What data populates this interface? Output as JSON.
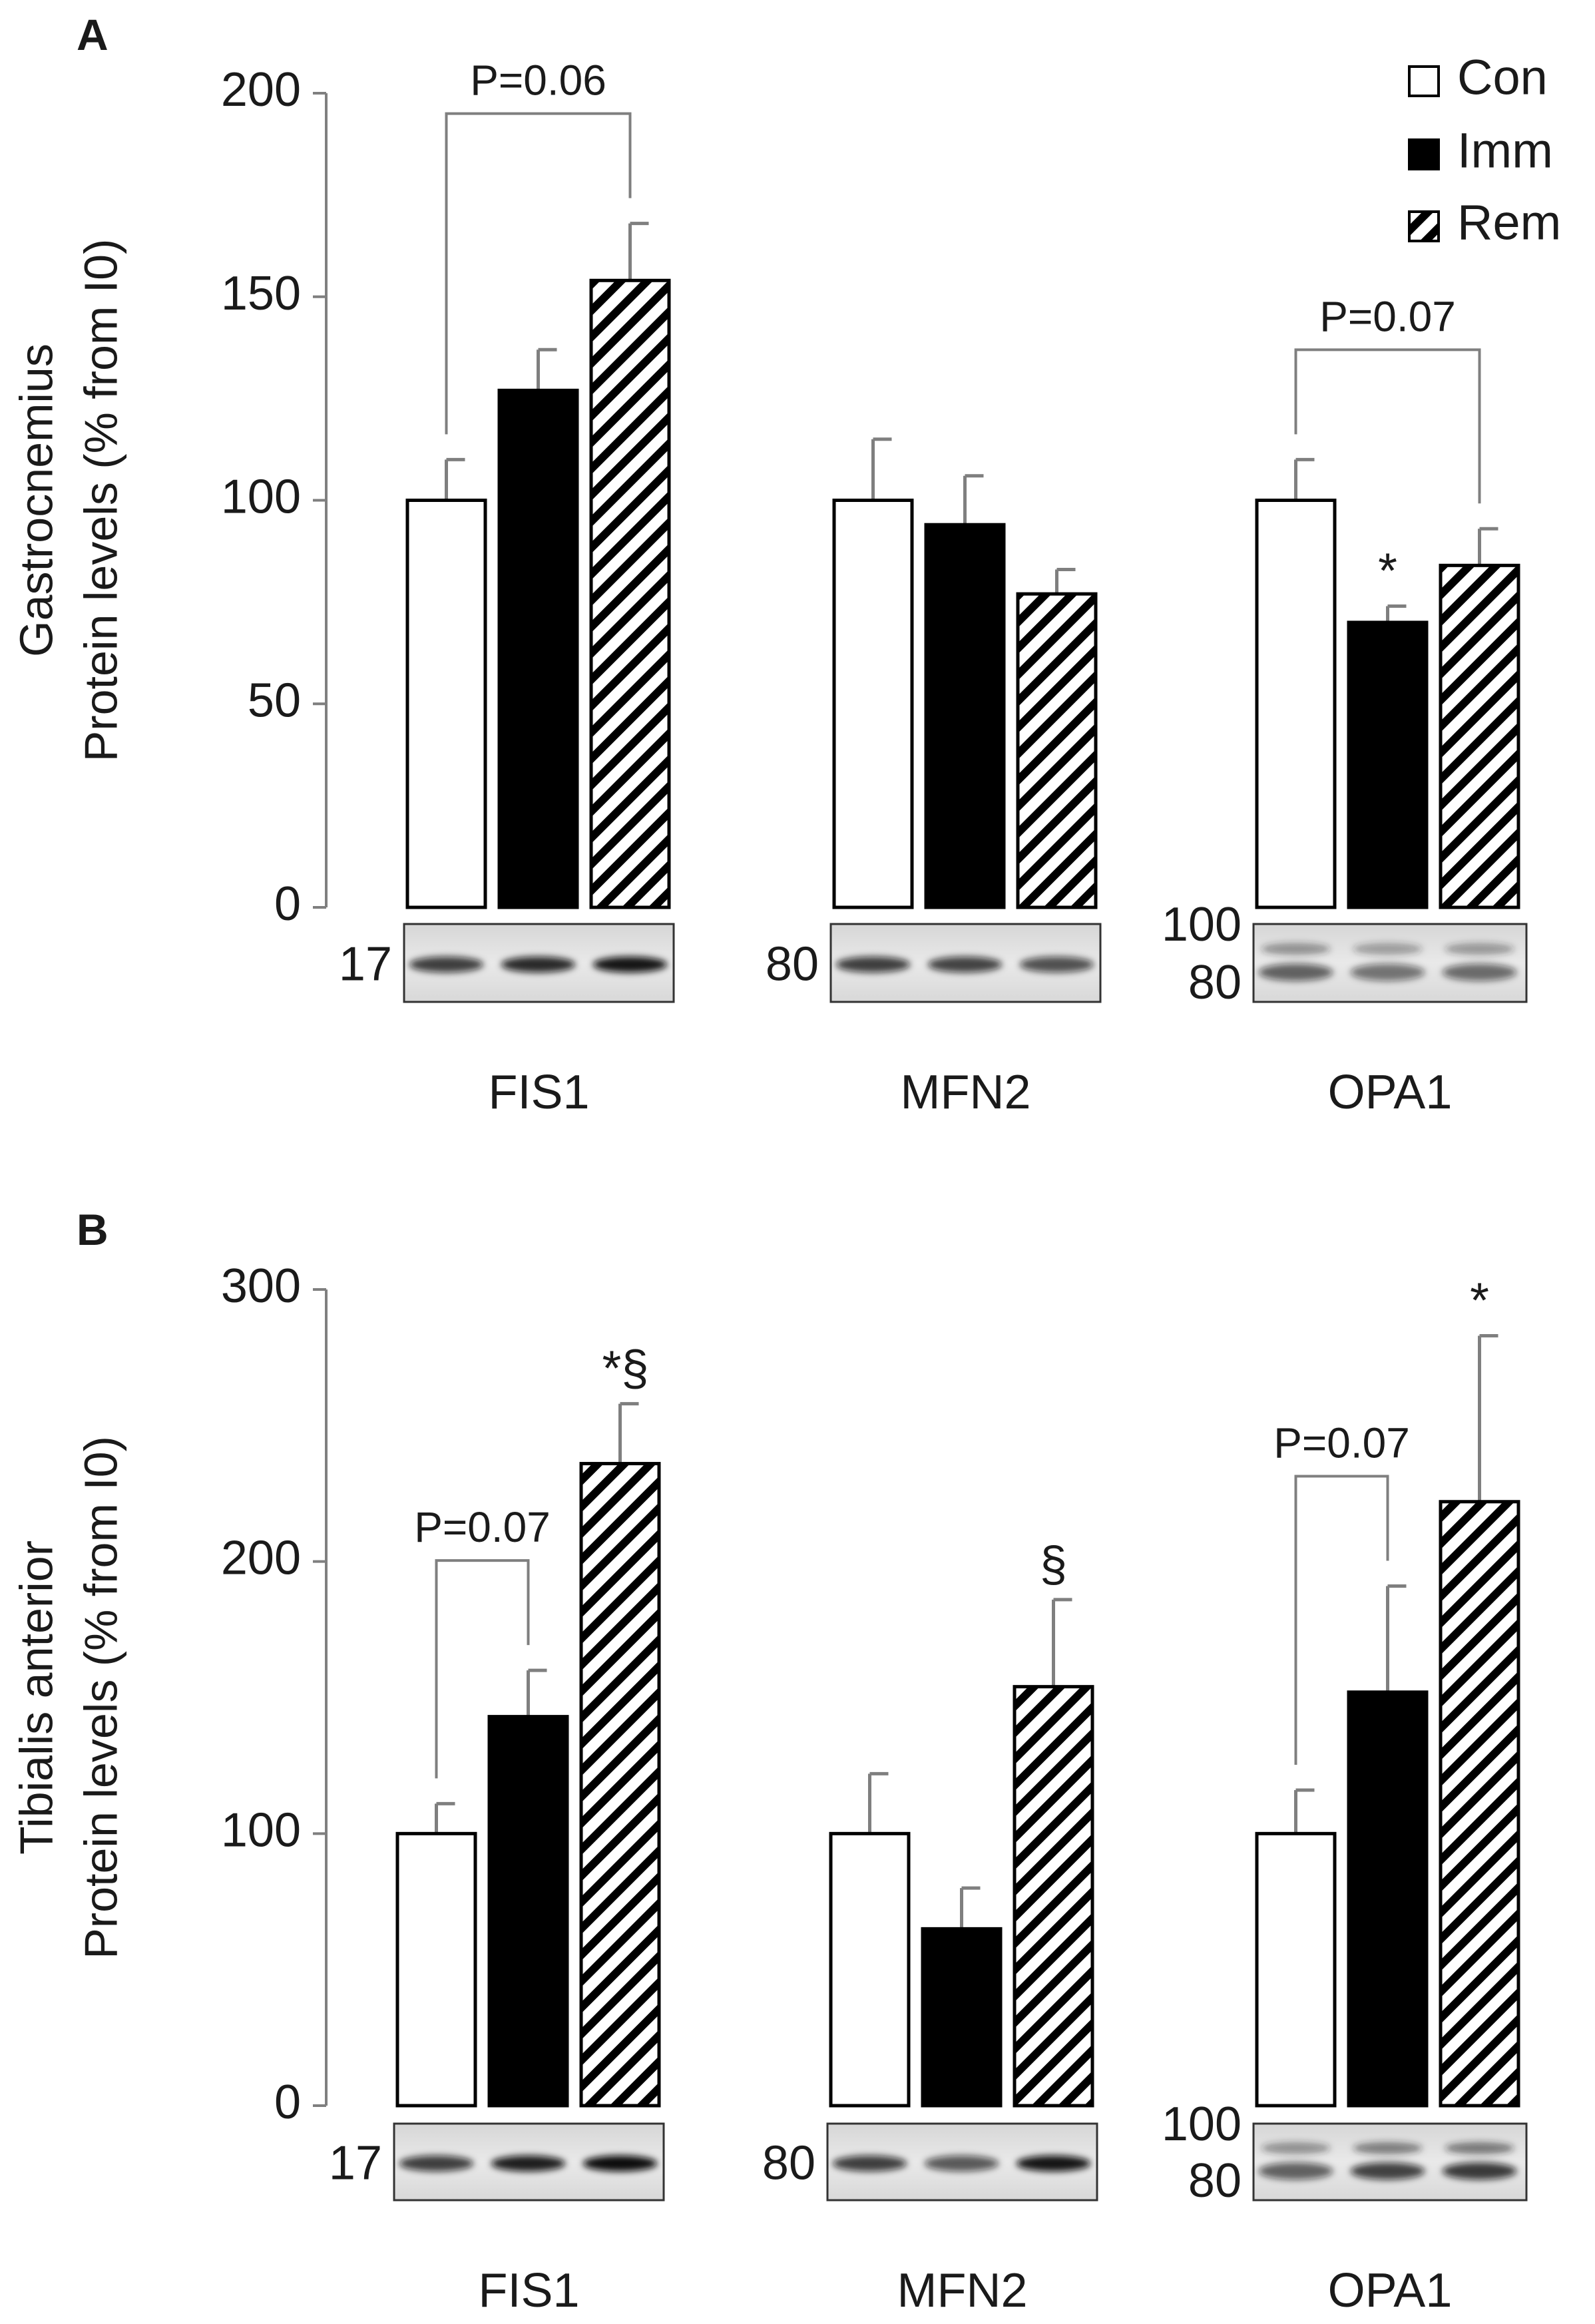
{
  "colors": {
    "con": "#ffffff",
    "imm": "#000000",
    "axis": "#7f7f7f",
    "bar_outline": "#000000",
    "error_bar": "#7f7f7f"
  },
  "legend": [
    {
      "key": "con",
      "label": "Con",
      "icon": "open-square-icon"
    },
    {
      "key": "imm",
      "label": "Imm",
      "icon": "filled-square-icon"
    },
    {
      "key": "rem",
      "label": "Rem",
      "icon": "hatched-square-icon"
    }
  ],
  "chart_data": [
    {
      "type": "bar",
      "panel_label": "A",
      "ylabel_lines": [
        "Gastrocnemius",
        "Protein levels (% from I0)"
      ],
      "ylim": [
        0,
        200
      ],
      "yticks": [
        0,
        50,
        100,
        150,
        200
      ],
      "categories": [
        "FIS1",
        "MFN2",
        "OPA1"
      ],
      "series": [
        {
          "name": "Con",
          "values": [
            100,
            100,
            100
          ],
          "errors": [
            10,
            15,
            10
          ]
        },
        {
          "name": "Imm",
          "values": [
            127,
            94,
            70
          ],
          "errors": [
            10,
            12,
            4
          ]
        },
        {
          "name": "Rem",
          "values": [
            154,
            77,
            84
          ],
          "errors": [
            14,
            6,
            9
          ]
        }
      ],
      "significance": [
        {
          "category": 2,
          "series": 1,
          "text": "*"
        }
      ],
      "brackets": [
        {
          "category": 0,
          "from_series": 0,
          "to_series": 2,
          "label": "P=0.06"
        },
        {
          "category": 2,
          "from_series": 0,
          "to_series": 2,
          "label": "P=0.07"
        }
      ],
      "blot_markers": [
        [
          "17"
        ],
        [
          "80"
        ],
        [
          "100",
          "80"
        ]
      ]
    },
    {
      "type": "bar",
      "panel_label": "B",
      "ylabel_lines": [
        "Tibialis anterior",
        "Protein levels (% from I0)"
      ],
      "ylim": [
        0,
        300
      ],
      "yticks": [
        0,
        100,
        200,
        300
      ],
      "categories": [
        "FIS1",
        "MFN2",
        "OPA1"
      ],
      "series": [
        {
          "name": "Con",
          "values": [
            100,
            100,
            100
          ],
          "errors": [
            11,
            22,
            16
          ]
        },
        {
          "name": "Imm",
          "values": [
            143,
            65,
            152
          ],
          "errors": [
            17,
            15,
            39
          ]
        },
        {
          "name": "Rem",
          "values": [
            236,
            154,
            222
          ],
          "errors": [
            22,
            32,
            61
          ]
        }
      ],
      "significance": [
        {
          "category": 0,
          "series": 2,
          "text": "*§"
        },
        {
          "category": 1,
          "series": 2,
          "text": "§"
        },
        {
          "category": 2,
          "series": 2,
          "text": "*"
        }
      ],
      "brackets": [
        {
          "category": 0,
          "from_series": 0,
          "to_series": 1,
          "label": "P=0.07"
        },
        {
          "category": 2,
          "from_series": 0,
          "to_series": 1,
          "label": "P=0.07"
        }
      ],
      "blot_markers": [
        [
          "17"
        ],
        [
          "80"
        ],
        [
          "100",
          "80"
        ]
      ]
    }
  ]
}
